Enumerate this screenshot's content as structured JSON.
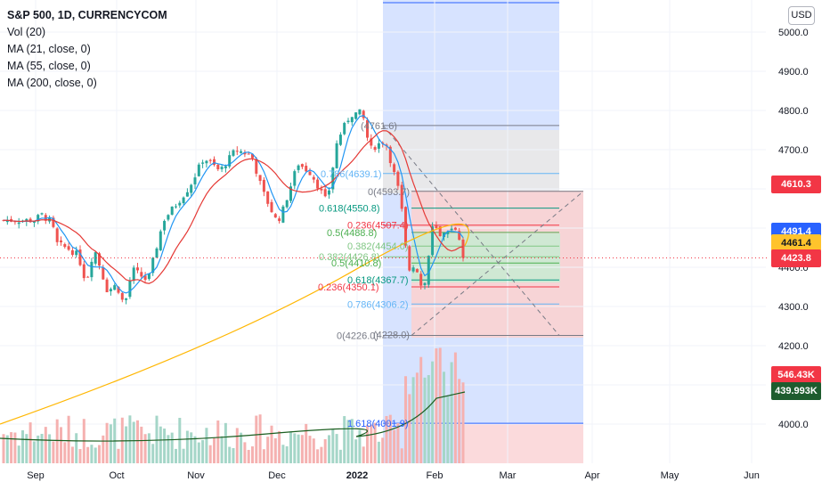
{
  "legend": {
    "symbol": "S&P 500, 1D, CURRENCYCOM",
    "indicators": [
      "Vol (20)",
      "MA (21, close, 0)",
      "MA (55, close, 0)",
      "MA (200, close, 0)"
    ]
  },
  "currency_button": "USD",
  "price_labels": [
    {
      "text": "4610.3",
      "price": 4610.3,
      "bg": "#f23645"
    },
    {
      "text": "4491.4",
      "price": 4491.4,
      "bg": "#2962ff"
    },
    {
      "text": "4461.4",
      "price": 4461.4,
      "bg": "#ffc32c"
    },
    {
      "text": "4423.8",
      "price": 4423.8,
      "bg": "#f23645"
    },
    {
      "text": "546.43K",
      "price": 4126,
      "bg": "#f23645"
    },
    {
      "text": "439.993K",
      "price": 4083,
      "bg": "#1e5c2e"
    }
  ],
  "colors": {
    "up": "#26a69a",
    "down": "#ef5350",
    "ma21": "#2196f3",
    "ma55": "#e53935",
    "ma200": "#ffb703",
    "vol_ma": "#1b5e20",
    "last_price": "#f23645"
  },
  "chart_data": {
    "type": "candlestick",
    "title": "S&P 500, 1D, CURRENCYCOM",
    "y_axis": {
      "ticks": [
        "5000.0",
        "4900.0",
        "4800.0",
        "4700.0",
        "4600.0",
        "4500.0",
        "4400.0",
        "4300.0",
        "4200.0",
        "4100.0",
        "4000.0"
      ],
      "ylim": [
        3920,
        5080
      ]
    },
    "x_axis": {
      "ticks": [
        "Sep",
        "Oct",
        "Nov",
        "Dec",
        "2022",
        "Feb",
        "Mar",
        "Apr",
        "May",
        "Jun"
      ]
    },
    "last_price": 4423.8,
    "keypoints": [
      {
        "date": "Sep 1",
        "close": 4520
      },
      {
        "date": "Sep 3",
        "close": 4535
      },
      {
        "date": "Sep 7",
        "close": 4515
      },
      {
        "date": "Sep 9",
        "close": 4460
      },
      {
        "date": "Sep 14",
        "close": 4445
      },
      {
        "date": "Sep 17",
        "close": 4430
      },
      {
        "date": "Sep 20",
        "close": 4360
      },
      {
        "date": "Sep 23",
        "close": 4450
      },
      {
        "date": "Sep 28",
        "close": 4340
      },
      {
        "date": "Oct 1",
        "close": 4355
      },
      {
        "date": "Oct 4",
        "close": 4300
      },
      {
        "date": "Oct 7",
        "close": 4395
      },
      {
        "date": "Oct 13",
        "close": 4365
      },
      {
        "date": "Oct 19",
        "close": 4520
      },
      {
        "date": "Oct 25",
        "close": 4570
      },
      {
        "date": "Oct 29",
        "close": 4605
      },
      {
        "date": "Nov 4",
        "close": 4680
      },
      {
        "date": "Nov 10",
        "close": 4645
      },
      {
        "date": "Nov 16",
        "close": 4700
      },
      {
        "date": "Nov 22",
        "close": 4685
      },
      {
        "date": "Nov 26",
        "close": 4595
      },
      {
        "date": "Dec 1",
        "close": 4515
      },
      {
        "date": "Dec 3",
        "close": 4540
      },
      {
        "date": "Dec 9",
        "close": 4665
      },
      {
        "date": "Dec 14",
        "close": 4640
      },
      {
        "date": "Dec 20",
        "close": 4565
      },
      {
        "date": "Dec 24",
        "close": 4725
      },
      {
        "date": "Dec 29",
        "close": 4790
      },
      {
        "date": "Jan 3",
        "close": 4795
      },
      {
        "date": "Jan 6",
        "close": 4700
      },
      {
        "date": "Jan 12",
        "close": 4725
      },
      {
        "date": "Jan 18",
        "close": 4580
      },
      {
        "date": "Jan 21",
        "close": 4395
      },
      {
        "date": "Jan 24",
        "close": 4410
      },
      {
        "date": "Jan 27",
        "close": 4330
      },
      {
        "date": "Jan 31",
        "close": 4515
      },
      {
        "date": "Feb 3",
        "close": 4475
      },
      {
        "date": "Feb 7",
        "close": 4485
      },
      {
        "date": "Feb 10",
        "close": 4505
      },
      {
        "date": "Feb 14",
        "close": 4425
      }
    ],
    "fib_retracement_left": [
      {
        "label": "(4761.6)",
        "level": 4761.6,
        "color": "#787b86"
      },
      {
        "label": "0.786(4639.1)",
        "level": 4639.1,
        "color": "#64b5f6"
      },
      {
        "label": "0(4593.7)",
        "level": 4593.7,
        "color": "#787b86"
      },
      {
        "label": "0.618(4550.8)",
        "level": 4550.8,
        "color": "#089981"
      },
      {
        "label": "0.236(4507.4)",
        "level": 4507.4,
        "color": "#f23645"
      },
      {
        "label": "0.5(4488.8)",
        "level": 4488.8,
        "color": "#4caf50"
      },
      {
        "label": "0.382(4454.0)",
        "level": 4454.0,
        "color": "#81c784"
      },
      {
        "label": "0.382(4426.8)",
        "level": 4426.8,
        "color": "#81c784"
      },
      {
        "label": "0.5(4410.8)",
        "level": 4410.8,
        "color": "#4caf50"
      },
      {
        "label": "0.618(4367.7)",
        "level": 4367.7,
        "color": "#089981"
      },
      {
        "label": "0.236(4350.1)",
        "level": 4350.1,
        "color": "#f23645"
      },
      {
        "label": "0.786(4306.2)",
        "level": 4306.2,
        "color": "#64b5f6"
      },
      {
        "label": "0(4226.0)",
        "level": 4226.0,
        "color": "#787b86"
      },
      {
        "label": "(4228.0)",
        "level": 4228.0,
        "color": "#787b86"
      },
      {
        "label": "1.618(4001.9)",
        "level": 4001.9,
        "color": "#2962ff"
      }
    ],
    "series": [
      {
        "name": "MA (21, close, 0)",
        "color": "#2196f3"
      },
      {
        "name": "MA (55, close, 0)",
        "color": "#e53935"
      },
      {
        "name": "MA (200, close, 0)",
        "color": "#ffb703"
      },
      {
        "name": "Vol (20)",
        "color": "#1b5e20"
      }
    ]
  }
}
